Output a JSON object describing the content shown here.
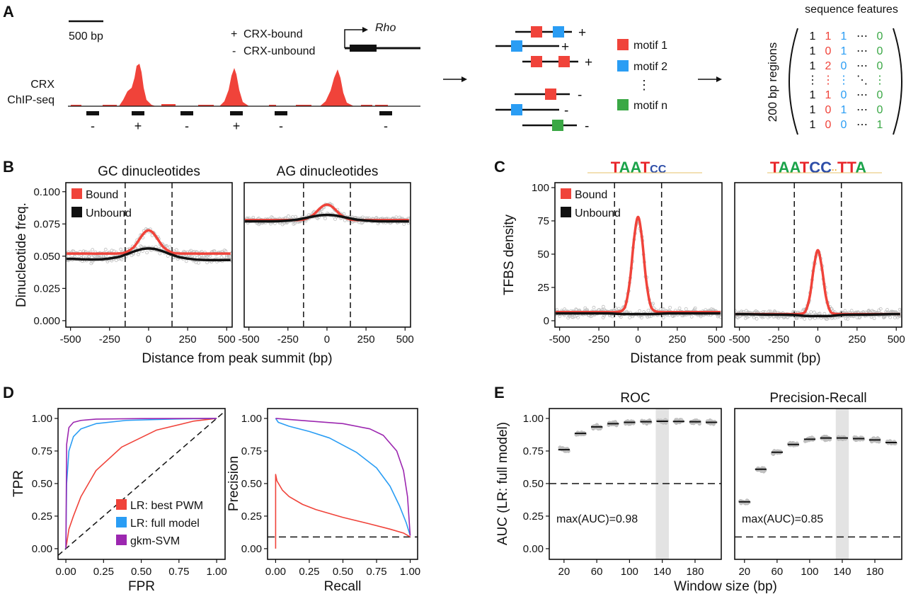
{
  "panel_labels": [
    "A",
    "B",
    "C",
    "D",
    "E"
  ],
  "panel_a": {
    "scale_bar": "500 bp",
    "legend": [
      {
        "sign": "+",
        "label": "CRX-bound"
      },
      {
        "sign": "-",
        "label": "CRX-unbound"
      }
    ],
    "gene": "Rho",
    "track_label": [
      "CRX",
      "ChIP-seq"
    ],
    "peak_color": "#f0433a",
    "region_signs": [
      "-",
      "+",
      "-",
      "+",
      "-",
      "-"
    ],
    "sequence_signs": [
      "+",
      "+",
      "+",
      "-",
      "-",
      "-"
    ],
    "motifs": [
      {
        "label": "motif 1",
        "color": "#f0433a"
      },
      {
        "label": "motif 2",
        "color": "#2a9df4"
      },
      {
        "label": "motif n",
        "color": "#3aa845"
      }
    ],
    "motif_ellipsis": "⋮",
    "matrix": {
      "title": "sequence features",
      "row_label": "200 bp regions",
      "column_colors": [
        "#111111",
        "#f0433a",
        "#2a9df4",
        "#111111",
        "#3aa845"
      ],
      "rows": [
        [
          "1",
          "1",
          "1",
          "⋯",
          "0"
        ],
        [
          "1",
          "0",
          "1",
          "⋯",
          "0"
        ],
        [
          "1",
          "2",
          "0",
          "⋯",
          "0"
        ],
        [
          "⋮",
          "⋮",
          "⋮",
          "⋱",
          "⋮"
        ],
        [
          "1",
          "1",
          "0",
          "⋯",
          "0"
        ],
        [
          "1",
          "0",
          "1",
          "⋯",
          "0"
        ],
        [
          "1",
          "0",
          "0",
          "⋯",
          "1"
        ]
      ]
    }
  },
  "chart_data": [
    {
      "panel": "B",
      "type": "line",
      "title": "GC dinucleotides",
      "xlabel": "Distance from peak summit (bp)",
      "ylabel": "Dinucleotide freq.",
      "xlim": [
        -530,
        535
      ],
      "ylim": [
        -0.005,
        0.107
      ],
      "xticks": [
        -500,
        -250,
        0,
        250,
        500
      ],
      "xtick_labels": [
        "-500",
        "-250",
        "0",
        "250",
        "500"
      ],
      "yticks": [
        0,
        0.025,
        0.05,
        0.075,
        0.1
      ],
      "ytick_labels": [
        "0.000",
        "0.025",
        "0.050",
        "0.075",
        "0.100"
      ],
      "vlines": [
        -150,
        150
      ],
      "legend": "top-left",
      "grid": false,
      "x": [
        -525,
        -400,
        -300,
        -200,
        -150,
        -100,
        -75,
        -50,
        -25,
        0,
        25,
        50,
        75,
        100,
        150,
        200,
        300,
        400,
        525
      ],
      "series": [
        {
          "name": "Bound",
          "color": "#f0433a",
          "values": [
            0.052,
            0.052,
            0.052,
            0.0521,
            0.0528,
            0.0565,
            0.0602,
            0.0647,
            0.0685,
            0.07,
            0.0685,
            0.0647,
            0.0602,
            0.0565,
            0.0528,
            0.0521,
            0.052,
            0.052,
            0.052
          ]
        },
        {
          "name": "Unbound",
          "color": "#111111",
          "values": [
            0.048,
            0.0475,
            0.0476,
            0.0492,
            0.0511,
            0.0534,
            0.0544,
            0.0553,
            0.0558,
            0.056,
            0.0558,
            0.0553,
            0.0544,
            0.0534,
            0.0511,
            0.0492,
            0.0474,
            0.047,
            0.047
          ]
        }
      ]
    },
    {
      "panel": "B",
      "type": "line",
      "title": "AG dinucleotides",
      "xlabel": "",
      "ylabel": "",
      "xlim": [
        -530,
        535
      ],
      "ylim": [
        -0.005,
        0.107
      ],
      "xticks": [
        -500,
        -250,
        0,
        250,
        500
      ],
      "xtick_labels": [
        "-500",
        "-250",
        "0",
        "250",
        "500"
      ],
      "yticks": [],
      "ytick_labels": [],
      "vlines": [
        -150,
        150
      ],
      "grid": false,
      "x": [
        -525,
        -400,
        -300,
        -200,
        -150,
        -100,
        -75,
        -50,
        -25,
        0,
        25,
        50,
        75,
        100,
        150,
        200,
        300,
        400,
        525
      ],
      "series": [
        {
          "name": "Bound",
          "color": "#f0433a",
          "values": [
            0.078,
            0.078,
            0.078,
            0.078,
            0.0785,
            0.081,
            0.0835,
            0.0865,
            0.089,
            0.09,
            0.089,
            0.0865,
            0.0835,
            0.081,
            0.0785,
            0.078,
            0.078,
            0.078,
            0.078
          ]
        },
        {
          "name": "Unbound",
          "color": "#111111",
          "values": [
            0.077,
            0.077,
            0.0772,
            0.0782,
            0.0793,
            0.0805,
            0.0811,
            0.0816,
            0.0819,
            0.082,
            0.0819,
            0.0816,
            0.0811,
            0.0805,
            0.0793,
            0.0782,
            0.0772,
            0.077,
            0.077
          ]
        }
      ]
    },
    {
      "panel": "C",
      "type": "line",
      "motif_logo": "TAATCC",
      "xlabel": "Distance from peak summit (bp)",
      "ylabel": "TFBS density",
      "xlim": [
        -530,
        535
      ],
      "ylim": [
        -4.8,
        103.7
      ],
      "xticks": [
        -500,
        -250,
        0,
        250,
        500
      ],
      "xtick_labels": [
        "-500",
        "-250",
        "0",
        "250",
        "500"
      ],
      "yticks": [
        0,
        25,
        50,
        75,
        100
      ],
      "ytick_labels": [
        "0",
        "25",
        "50",
        "75",
        "100"
      ],
      "vlines": [
        -150,
        150
      ],
      "legend": "top-left",
      "grid": false,
      "x": [
        -525,
        -400,
        -300,
        -200,
        -150,
        -100,
        -75,
        -50,
        -25,
        0,
        25,
        50,
        75,
        100,
        150,
        200,
        300,
        400,
        525
      ],
      "series": [
        {
          "name": "Bound",
          "color": "#f0433a",
          "values": [
            6.5,
            6.5,
            6.5,
            6.5,
            6.5,
            7.7,
            13.7,
            32.2,
            61.9,
            78,
            61.9,
            32.2,
            13.7,
            7.7,
            6.5,
            6.5,
            6.5,
            6.5,
            6.5
          ]
        },
        {
          "name": "Unbound",
          "color": "#111111",
          "values": [
            5.5,
            5.5,
            5.5,
            5.5,
            5.3,
            5.0,
            5.0,
            5.0,
            5.0,
            5.0,
            5.0,
            5.0,
            5.0,
            5.0,
            5.3,
            5.5,
            5.5,
            5.5,
            5.5
          ]
        }
      ]
    },
    {
      "panel": "C",
      "type": "line",
      "motif_logo": "TAATCC..TTA",
      "xlabel": "",
      "ylabel": "",
      "xlim": [
        -530,
        535
      ],
      "ylim": [
        -4.8,
        103.7
      ],
      "xticks": [
        -500,
        -250,
        0,
        250,
        500
      ],
      "xtick_labels": [
        "-500",
        "-250",
        "0",
        "250",
        "500"
      ],
      "yticks": [],
      "ytick_labels": [],
      "vlines": [
        -150,
        150
      ],
      "grid": false,
      "x": [
        -525,
        -400,
        -300,
        -200,
        -150,
        -100,
        -75,
        -50,
        -25,
        0,
        25,
        50,
        75,
        100,
        150,
        200,
        300,
        400,
        525
      ],
      "series": [
        {
          "name": "Bound",
          "color": "#f0433a",
          "values": [
            5,
            5,
            5,
            5,
            5,
            5.4,
            8.1,
            19.2,
            40.4,
            53,
            40.4,
            19.2,
            8.1,
            5.4,
            5,
            5,
            5,
            5,
            5
          ]
        },
        {
          "name": "Unbound",
          "color": "#111111",
          "values": [
            5,
            4.8,
            4.6,
            4.5,
            4.3,
            3.8,
            3.6,
            3.5,
            3.5,
            3.5,
            3.5,
            3.5,
            3.6,
            3.8,
            4.3,
            4.5,
            4.6,
            4.8,
            5
          ]
        }
      ]
    },
    {
      "panel": "D",
      "type": "line",
      "xlabel": "FPR",
      "ylabel": "TPR",
      "xlim": [
        -0.052,
        1.056
      ],
      "ylim": [
        -0.082,
        1.076
      ],
      "xticks": [
        0,
        0.25,
        0.5,
        0.75,
        1
      ],
      "xtick_labels": [
        "0.00",
        "0.25",
        "0.50",
        "0.75",
        "1.00"
      ],
      "yticks": [
        0,
        0.25,
        0.5,
        0.75,
        1
      ],
      "ytick_labels": [
        "0.00",
        "0.25",
        "0.50",
        "0.75",
        "1.00"
      ],
      "diagonal": true,
      "legend": "bottom-right",
      "grid": false,
      "series": [
        {
          "name": "LR: best PWM",
          "color": "#f0433a",
          "points": [
            [
              0,
              0
            ],
            [
              0.02,
              0.15
            ],
            [
              0.05,
              0.25
            ],
            [
              0.1,
              0.4
            ],
            [
              0.2,
              0.6
            ],
            [
              0.37,
              0.78
            ],
            [
              0.6,
              0.91
            ],
            [
              0.85,
              0.98
            ],
            [
              1,
              1
            ]
          ]
        },
        {
          "name": "LR: full model",
          "color": "#2a9df4",
          "points": [
            [
              0,
              0
            ],
            [
              0.005,
              0.5
            ],
            [
              0.02,
              0.75
            ],
            [
              0.05,
              0.86
            ],
            [
              0.1,
              0.92
            ],
            [
              0.2,
              0.96
            ],
            [
              0.4,
              0.985
            ],
            [
              0.7,
              0.995
            ],
            [
              1,
              1
            ]
          ]
        },
        {
          "name": "gkm-SVM",
          "color": "#9c27b0",
          "points": [
            [
              0,
              0
            ],
            [
              0.005,
              0.8
            ],
            [
              0.02,
              0.93
            ],
            [
              0.05,
              0.97
            ],
            [
              0.1,
              0.985
            ],
            [
              0.2,
              0.995
            ],
            [
              0.5,
              0.999
            ],
            [
              1,
              1
            ]
          ]
        }
      ]
    },
    {
      "panel": "D",
      "type": "line",
      "xlabel": "Recall",
      "ylabel": "Precision",
      "xlim": [
        -0.06,
        1.055
      ],
      "ylim": [
        -0.082,
        1.076
      ],
      "xticks": [
        0,
        0.25,
        0.5,
        0.75,
        1
      ],
      "xtick_labels": [
        "0.00",
        "0.25",
        "0.50",
        "0.75",
        "1.00"
      ],
      "yticks": [
        0,
        0.25,
        0.5,
        0.75,
        1
      ],
      "ytick_labels": [
        "0.00",
        "0.25",
        "0.50",
        "0.75",
        "1.00"
      ],
      "hlines": [
        0.09
      ],
      "grid": false,
      "series": [
        {
          "name": "LR: best PWM",
          "color": "#f0433a",
          "points": [
            [
              0,
              0
            ],
            [
              0,
              0.57
            ],
            [
              0.01,
              0.52
            ],
            [
              0.05,
              0.45
            ],
            [
              0.1,
              0.4
            ],
            [
              0.2,
              0.34
            ],
            [
              0.3,
              0.3
            ],
            [
              0.5,
              0.24
            ],
            [
              0.7,
              0.19
            ],
            [
              0.85,
              0.15
            ],
            [
              0.95,
              0.12
            ],
            [
              1,
              0.09
            ]
          ]
        },
        {
          "name": "LR: full model",
          "color": "#2a9df4",
          "points": [
            [
              0,
              1
            ],
            [
              0.02,
              0.97
            ],
            [
              0.1,
              0.94
            ],
            [
              0.25,
              0.9
            ],
            [
              0.4,
              0.85
            ],
            [
              0.6,
              0.74
            ],
            [
              0.75,
              0.62
            ],
            [
              0.85,
              0.48
            ],
            [
              0.92,
              0.33
            ],
            [
              0.97,
              0.2
            ],
            [
              1,
              0.1
            ]
          ]
        },
        {
          "name": "gkm-SVM",
          "color": "#9c27b0",
          "points": [
            [
              0,
              1
            ],
            [
              0.25,
              0.98
            ],
            [
              0.5,
              0.96
            ],
            [
              0.7,
              0.92
            ],
            [
              0.8,
              0.87
            ],
            [
              0.9,
              0.75
            ],
            [
              0.95,
              0.6
            ],
            [
              0.98,
              0.4
            ],
            [
              1,
              0.1
            ]
          ]
        }
      ]
    },
    {
      "panel": "E",
      "type": "scatter",
      "title": "ROC",
      "xlabel": "Window size (bp)",
      "ylabel": "AUC (LR: full model)",
      "xlim": [
        2,
        212
      ],
      "ylim": [
        -0.082,
        1.076
      ],
      "xticks": [
        20,
        60,
        100,
        140,
        180
      ],
      "xtick_labels": [
        "20",
        "60",
        "100",
        "140",
        "180"
      ],
      "yticks": [
        0,
        0.25,
        0.5,
        0.75,
        1
      ],
      "ytick_labels": [
        "0.00",
        "0.25",
        "0.50",
        "0.75",
        "1.00"
      ],
      "hlines": [
        0.5
      ],
      "highlight_band": [
        132,
        148
      ],
      "annotation": "max(AUC)=0.98",
      "grid": false,
      "x": [
        20,
        40,
        60,
        80,
        100,
        120,
        140,
        160,
        180,
        200
      ],
      "values": [
        0.76,
        0.885,
        0.935,
        0.96,
        0.97,
        0.975,
        0.978,
        0.977,
        0.975,
        0.97
      ]
    },
    {
      "panel": "E",
      "type": "scatter",
      "title": "Precision-Recall",
      "xlabel": "",
      "ylabel": "",
      "xlim": [
        8,
        213
      ],
      "ylim": [
        -0.082,
        1.076
      ],
      "xticks": [
        20,
        60,
        100,
        140,
        180
      ],
      "xtick_labels": [
        "20",
        "60",
        "100",
        "140",
        "180"
      ],
      "yticks": [],
      "ytick_labels": [],
      "hlines": [
        0.09
      ],
      "highlight_band": [
        132,
        148
      ],
      "annotation": "max(AUC)=0.85",
      "grid": false,
      "x": [
        20,
        40,
        60,
        80,
        100,
        120,
        140,
        160,
        180,
        200
      ],
      "values": [
        0.36,
        0.61,
        0.74,
        0.8,
        0.84,
        0.85,
        0.85,
        0.845,
        0.835,
        0.815
      ]
    }
  ]
}
